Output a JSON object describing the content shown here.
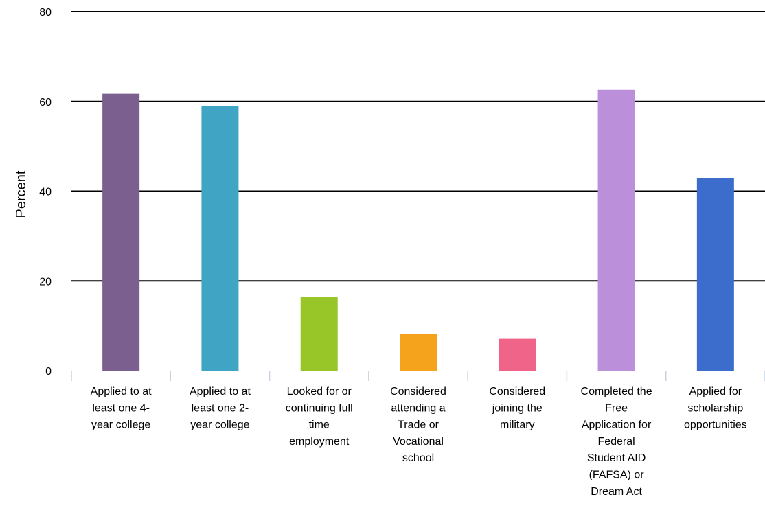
{
  "chart_data": {
    "type": "bar",
    "title": "",
    "xlabel": "",
    "ylabel": "Percent",
    "ylim": [
      0,
      80
    ],
    "yticks": [
      0,
      20,
      40,
      60,
      80
    ],
    "grid": true,
    "legend": "none",
    "categories": [
      "Applied to at least one 4-year college",
      "Applied to at least one 2-year college",
      "Looked for or continuing full time employment",
      "Considered attending a Trade or Vocational school",
      "Considered joining the military",
      "Completed the Free Application for Federal Student AID (FAFSA) or Dream Act",
      "Applied for scholarship opportunities"
    ],
    "category_label_lines": [
      [
        "Applied to at",
        "least one 4-",
        "year college"
      ],
      [
        "Applied to at",
        "least one 2-",
        "year college"
      ],
      [
        "Looked for or",
        "continuing full",
        "time",
        "employment"
      ],
      [
        "Considered",
        "attending a",
        "Trade or",
        "Vocational",
        "school"
      ],
      [
        "Considered",
        "joining the",
        "military"
      ],
      [
        "Completed the",
        "Free",
        "Application for",
        "Federal",
        "Student AID",
        "(FAFSA) or",
        "Dream Act"
      ],
      [
        "Applied for",
        "scholarship",
        "opportunities"
      ]
    ],
    "values": [
      61.7,
      58.9,
      16.4,
      8.2,
      7.1,
      62.6,
      42.9
    ],
    "colors": [
      "#7b5f8e",
      "#40a4c4",
      "#98c528",
      "#f5a31d",
      "#ef6488",
      "#bc8fdb",
      "#3c6dcc"
    ]
  }
}
